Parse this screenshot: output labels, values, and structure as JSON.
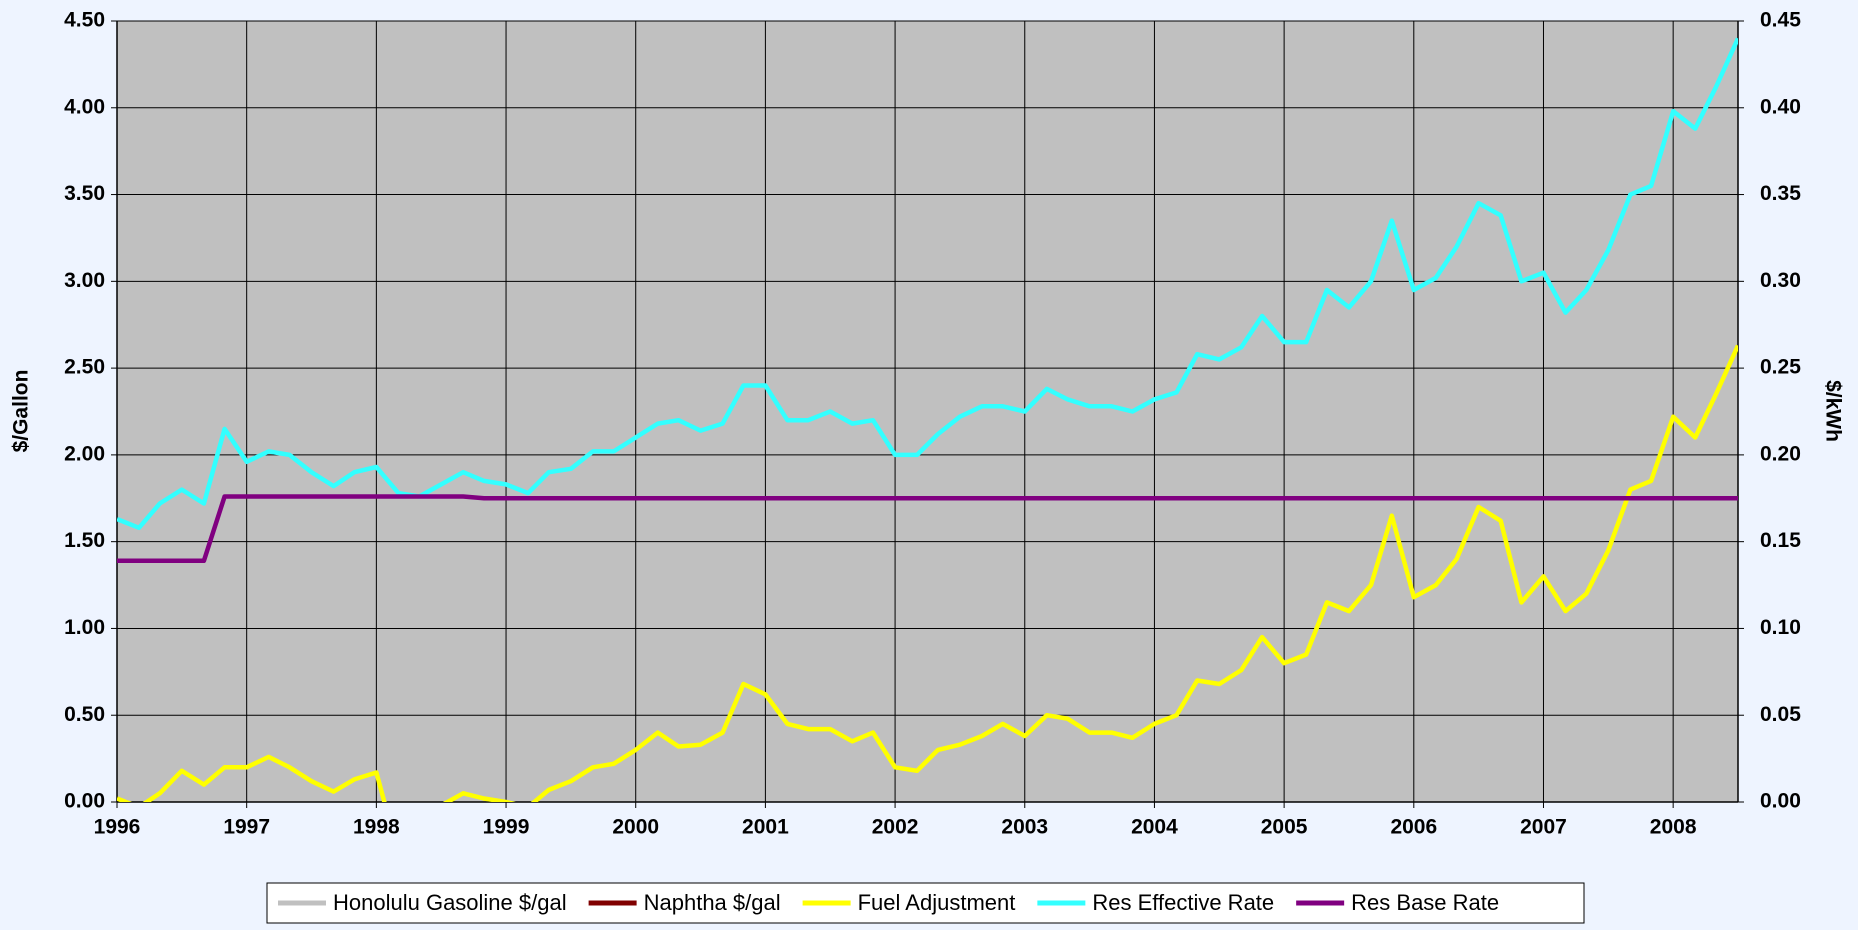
{
  "chart_data": {
    "type": "line",
    "ylabel": "$/Gallon",
    "y2label": "$/kWh",
    "x": [
      1996.0,
      1996.17,
      1996.33,
      1996.5,
      1996.67,
      1996.83,
      1997.0,
      1997.17,
      1997.33,
      1997.5,
      1997.67,
      1997.83,
      1998.0,
      1998.17,
      1998.33,
      1998.5,
      1998.67,
      1998.83,
      1999.0,
      1999.17,
      1999.33,
      1999.5,
      1999.67,
      1999.83,
      2000.0,
      2000.17,
      2000.33,
      2000.5,
      2000.67,
      2000.83,
      2001.0,
      2001.17,
      2001.33,
      2001.5,
      2001.67,
      2001.83,
      2002.0,
      2002.17,
      2002.33,
      2002.5,
      2002.67,
      2002.83,
      2003.0,
      2003.17,
      2003.33,
      2003.5,
      2003.67,
      2003.83,
      2004.0,
      2004.17,
      2004.33,
      2004.5,
      2004.67,
      2004.83,
      2005.0,
      2005.17,
      2005.33,
      2005.5,
      2005.67,
      2005.83,
      2006.0,
      2006.17,
      2006.33,
      2006.5,
      2006.67,
      2006.83,
      2007.0,
      2007.17,
      2007.33,
      2007.5,
      2007.67,
      2007.83,
      2008.0,
      2008.17,
      2008.33,
      2008.5
    ],
    "xlim": [
      1996,
      2008.5
    ],
    "xticks": [
      1996,
      1997,
      1998,
      1999,
      2000,
      2001,
      2002,
      2003,
      2004,
      2005,
      2006,
      2007,
      2008
    ],
    "ylim": [
      0,
      4.5
    ],
    "yticks": [
      {
        "value": 0,
        "label": "0.00"
      },
      {
        "value": 0.5,
        "label": "0.50"
      },
      {
        "value": 1,
        "label": "1.00"
      },
      {
        "value": 1.5,
        "label": "1.50"
      },
      {
        "value": 2,
        "label": "2.00"
      },
      {
        "value": 2.5,
        "label": "2.50"
      },
      {
        "value": 3,
        "label": "3.00"
      },
      {
        "value": 3.5,
        "label": "3.50"
      },
      {
        "value": 4,
        "label": "4.00"
      },
      {
        "value": 4.5,
        "label": "4.50"
      }
    ],
    "y2lim": [
      0,
      0.45
    ],
    "y2ticks": [
      {
        "value": 0,
        "label": "0.00"
      },
      {
        "value": 0.05,
        "label": "0.05"
      },
      {
        "value": 0.1,
        "label": "0.10"
      },
      {
        "value": 0.15,
        "label": "0.15"
      },
      {
        "value": 0.2,
        "label": "0.20"
      },
      {
        "value": 0.25,
        "label": "0.25"
      },
      {
        "value": 0.3,
        "label": "0.30"
      },
      {
        "value": 0.35,
        "label": "0.35"
      },
      {
        "value": 0.4,
        "label": "0.40"
      },
      {
        "value": 0.45,
        "label": "0.45"
      }
    ],
    "grid": true,
    "series": [
      {
        "name": "Honolulu Gasoline $/gal",
        "color": "#c0c0c0",
        "axis": "y",
        "values": [
          null,
          null,
          null,
          null,
          null,
          null,
          null,
          null,
          null,
          null,
          null,
          null,
          null,
          null,
          null,
          null,
          null,
          null,
          null,
          null,
          null,
          null,
          null,
          null,
          null,
          null,
          null,
          null,
          null,
          null,
          null,
          null,
          null,
          null,
          null,
          null,
          null,
          null,
          null,
          null,
          null,
          null,
          null,
          null,
          null,
          null,
          null,
          null,
          null,
          null,
          null,
          null,
          null,
          null,
          null,
          null,
          null,
          null,
          null,
          null,
          null,
          null,
          null,
          null,
          null,
          null,
          null,
          null,
          null,
          null,
          null,
          null,
          null,
          null,
          null,
          null
        ]
      },
      {
        "name": "Naphtha $/gal",
        "color": "#800000",
        "axis": "y",
        "values": [
          null,
          null,
          null,
          null,
          null,
          null,
          null,
          null,
          null,
          null,
          null,
          null,
          null,
          null,
          null,
          null,
          null,
          null,
          null,
          null,
          null,
          null,
          null,
          null,
          null,
          null,
          null,
          null,
          null,
          null,
          null,
          null,
          null,
          null,
          null,
          null,
          null,
          null,
          null,
          null,
          null,
          null,
          null,
          null,
          null,
          null,
          null,
          null,
          null,
          null,
          null,
          null,
          null,
          null,
          null,
          null,
          null,
          null,
          null,
          null,
          null,
          null,
          null,
          null,
          null,
          null,
          null,
          null,
          null,
          null,
          null,
          null,
          null,
          null,
          null,
          null
        ]
      },
      {
        "name": "Fuel Adjustment",
        "color": "#ffff00",
        "axis": "y2",
        "values": [
          0.002,
          -0.003,
          0.005,
          0.018,
          0.01,
          0.02,
          0.02,
          0.026,
          0.02,
          0.012,
          0.006,
          0.013,
          0.017,
          -0.03,
          -0.04,
          -0.002,
          0.005,
          0.002,
          0.0,
          -0.003,
          0.007,
          0.012,
          0.02,
          0.022,
          0.03,
          0.04,
          0.032,
          0.033,
          0.04,
          0.068,
          0.062,
          0.045,
          0.042,
          0.042,
          0.035,
          0.04,
          0.02,
          0.018,
          0.03,
          0.033,
          0.038,
          0.045,
          0.038,
          0.05,
          0.048,
          0.04,
          0.04,
          0.037,
          0.045,
          0.05,
          0.07,
          0.068,
          0.076,
          0.095,
          0.08,
          0.085,
          0.115,
          0.11,
          0.125,
          0.165,
          0.118,
          0.125,
          0.14,
          0.17,
          0.162,
          0.115,
          0.13,
          0.11,
          0.12,
          0.145,
          0.18,
          0.185,
          0.222,
          0.21,
          0.235,
          0.263
        ]
      },
      {
        "name": "Res Effective Rate",
        "color": "#33ffff",
        "axis": "y2",
        "values": [
          0.163,
          0.158,
          0.172,
          0.18,
          0.172,
          0.215,
          0.196,
          0.202,
          0.2,
          0.19,
          0.182,
          0.19,
          0.193,
          0.178,
          0.176,
          0.183,
          0.19,
          0.185,
          0.183,
          0.178,
          0.19,
          0.192,
          0.202,
          0.202,
          0.21,
          0.218,
          0.22,
          0.214,
          0.218,
          0.24,
          0.24,
          0.22,
          0.22,
          0.225,
          0.218,
          0.22,
          0.2,
          0.2,
          0.212,
          0.222,
          0.228,
          0.228,
          0.225,
          0.238,
          0.232,
          0.228,
          0.228,
          0.225,
          0.232,
          0.236,
          0.258,
          0.255,
          0.262,
          0.28,
          0.265,
          0.265,
          0.295,
          0.285,
          0.3,
          0.335,
          0.295,
          0.302,
          0.32,
          0.345,
          0.338,
          0.3,
          0.305,
          0.282,
          0.295,
          0.318,
          0.35,
          0.355,
          0.398,
          0.388,
          0.412,
          0.44
        ]
      },
      {
        "name": "Res Base Rate",
        "color": "#800080",
        "axis": "y2",
        "values": [
          0.139,
          0.139,
          0.139,
          0.139,
          0.139,
          0.176,
          0.176,
          0.176,
          0.176,
          0.176,
          0.176,
          0.176,
          0.176,
          0.176,
          0.176,
          0.176,
          0.176,
          0.175,
          0.175,
          0.175,
          0.175,
          0.175,
          0.175,
          0.175,
          0.175,
          0.175,
          0.175,
          0.175,
          0.175,
          0.175,
          0.175,
          0.175,
          0.175,
          0.175,
          0.175,
          0.175,
          0.175,
          0.175,
          0.175,
          0.175,
          0.175,
          0.175,
          0.175,
          0.175,
          0.175,
          0.175,
          0.175,
          0.175,
          0.175,
          0.175,
          0.175,
          0.175,
          0.175,
          0.175,
          0.175,
          0.175,
          0.175,
          0.175,
          0.175,
          0.175,
          0.175,
          0.175,
          0.175,
          0.175,
          0.175,
          0.175,
          0.175,
          0.175,
          0.175,
          0.175,
          0.175,
          0.175,
          0.175,
          0.175,
          0.175,
          0.175
        ]
      }
    ]
  }
}
